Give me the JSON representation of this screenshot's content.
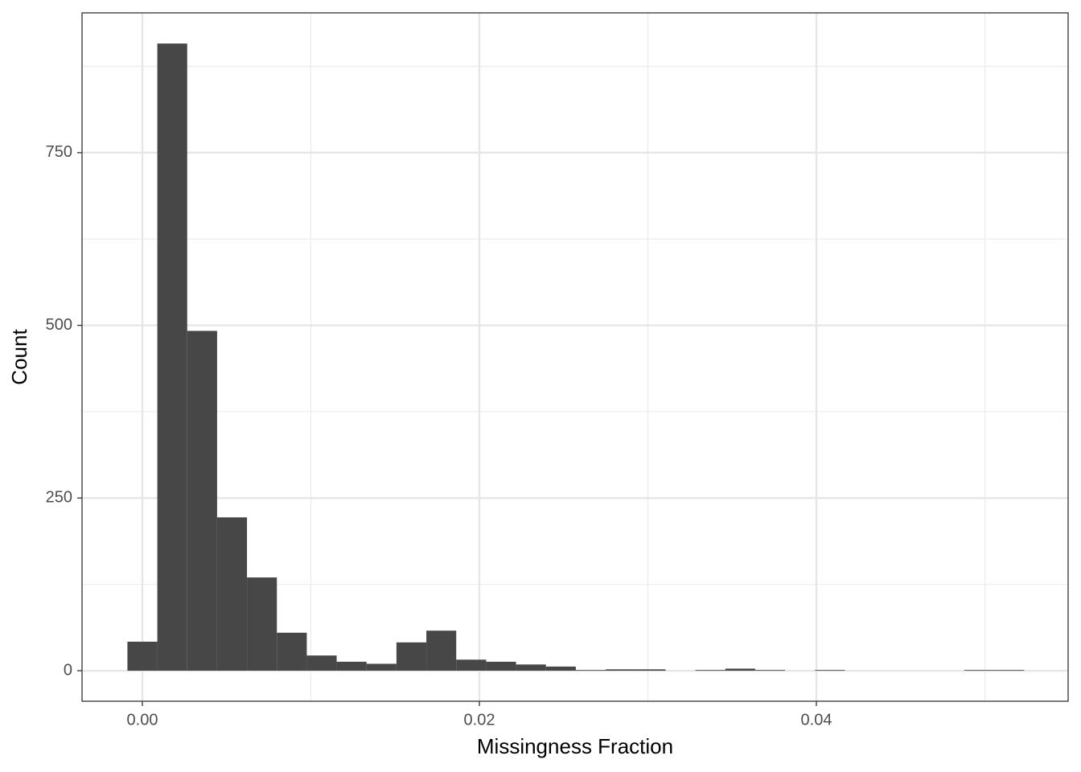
{
  "chart_data": {
    "type": "histogram",
    "xlabel": "Missingness Fraction",
    "ylabel": "Count",
    "bins": [
      -0.000887,
      0.000887,
      0.002661,
      0.004435,
      0.006209,
      0.007983,
      0.009757,
      0.011531,
      0.013305,
      0.015079,
      0.016853,
      0.018627,
      0.020401,
      0.022175,
      0.023949,
      0.025723,
      0.027497,
      0.029271,
      0.031045,
      0.032819,
      0.034593,
      0.036367,
      0.038141,
      0.039915,
      0.041689,
      0.043463,
      0.045237,
      0.047011,
      0.048785,
      0.050559,
      0.052333
    ],
    "values": [
      42,
      908,
      492,
      222,
      135,
      55,
      22,
      13,
      10,
      41,
      58,
      16,
      13,
      9,
      6,
      1,
      2,
      2,
      0,
      1,
      3,
      1,
      0,
      1,
      0,
      0,
      0,
      0,
      1,
      1
    ],
    "color": "#474747",
    "xlim": [
      -0.00358,
      0.05494
    ],
    "ylim": [
      -44.2,
      952.4
    ],
    "xticks": [
      {
        "value": 0,
        "label": "0.00"
      },
      0.02,
      0.04
    ],
    "yticks": [
      0,
      250,
      500,
      750
    ],
    "minor_xticks": [
      0.01,
      0.03,
      0.05
    ],
    "minor_yticks": [
      125,
      375,
      625,
      875
    ],
    "grid": true
  }
}
